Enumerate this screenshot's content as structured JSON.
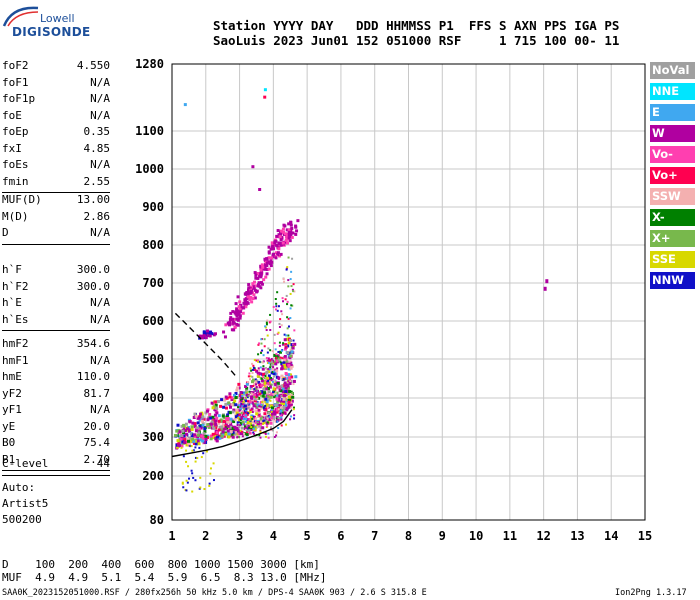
{
  "logo": {
    "line1": "Lowell",
    "line2": "DIGISONDE"
  },
  "header": {
    "row1": "Station YYYY DAY   DDD HHMMSS P1  FFS S AXN PPS IGA PS",
    "row2": "SaoLuis 2023 Jun01 152 051000 RSF     1 715 100 00- 11"
  },
  "params": [
    [
      {
        "k": "foF2",
        "v": "4.550"
      },
      {
        "k": "foF1",
        "v": "N/A"
      },
      {
        "k": "foF1p",
        "v": "N/A"
      },
      {
        "k": "foE",
        "v": "N/A"
      },
      {
        "k": "foEp",
        "v": "0.35"
      },
      {
        "k": "fxI",
        "v": "4.85"
      },
      {
        "k": "foEs",
        "v": "N/A"
      },
      {
        "k": "fmin",
        "v": "2.55"
      }
    ],
    [
      {
        "k": "MUF(D)",
        "v": "13.00"
      },
      {
        "k": "M(D)",
        "v": "2.86"
      },
      {
        "k": "D",
        "v": "N/A"
      }
    ],
    [
      {
        "k": "h`F",
        "v": "300.0"
      },
      {
        "k": "h`F2",
        "v": "300.0"
      },
      {
        "k": "h`E",
        "v": "N/A"
      },
      {
        "k": "h`Es",
        "v": "N/A"
      }
    ],
    [
      {
        "k": "hmF2",
        "v": "354.6"
      },
      {
        "k": "hmF1",
        "v": "N/A"
      },
      {
        "k": "hmE",
        "v": "110.0"
      },
      {
        "k": "yF2",
        "v": "81.7"
      },
      {
        "k": "yF1",
        "v": "N/A"
      },
      {
        "k": "yE",
        "v": "20.0"
      },
      {
        "k": "B0",
        "v": "75.4"
      },
      {
        "k": "B1",
        "v": "2.70"
      }
    ],
    [
      {
        "k": "C-level",
        "v": "44"
      }
    ]
  ],
  "autoscale": [
    "Auto:",
    "Artist5",
    "500200"
  ],
  "legend": [
    {
      "label": "NoVal",
      "color": "#a0a0a0"
    },
    {
      "label": "NNE",
      "color": "#00e5ff"
    },
    {
      "label": "E",
      "color": "#40a8f0"
    },
    {
      "label": "W",
      "color": "#b000a0"
    },
    {
      "label": "Vo-",
      "color": "#ff3fb0"
    },
    {
      "label": "Vo+",
      "color": "#ff0050"
    },
    {
      "label": "SSW",
      "color": "#f4b0b0"
    },
    {
      "label": "X-",
      "color": "#008000"
    },
    {
      "label": "X+",
      "color": "#78b84c"
    },
    {
      "label": "SSE",
      "color": "#d8d800"
    },
    {
      "label": "NNW",
      "color": "#1010c8"
    }
  ],
  "footer": {
    "row1": "D    100  200  400  600  800 1000 1500 3000 [km]",
    "row2": "MUF  4.9  4.9  5.1  5.4  5.9  6.5  8.3 13.0 [MHz]",
    "source": "SAA0K_2023152051000.RSF / 280fx256h 50 kHz 5.0 km / DPS-4 SAA0K 903 / 2.6 S 315.8 E",
    "version": "Ion2Png 1.3.17"
  },
  "chart_data": {
    "type": "scatter",
    "xlim": [
      1,
      15
    ],
    "ylim": [
      80,
      1280
    ],
    "x_ticks": [
      1,
      2,
      3,
      4,
      5,
      6,
      7,
      8,
      9,
      10,
      11,
      12,
      13,
      14,
      15
    ],
    "y_ticks": [
      80,
      200,
      300,
      400,
      500,
      600,
      700,
      800,
      900,
      1000,
      1100,
      1280
    ],
    "grid": true,
    "x_unit": "MHz",
    "y_unit": "km",
    "x_scale": "linear",
    "y_scale": "custom piecewise",
    "traces": [
      {
        "name": "O-mode echo band, lower edge",
        "x": [
          1.1,
          1.6,
          2.1,
          2.6,
          3.1,
          3.6,
          4.0,
          4.3,
          4.5
        ],
        "y": [
          280,
          290,
          295,
          305,
          315,
          330,
          350,
          375,
          400
        ]
      },
      {
        "name": "O-mode echo band, upper edge",
        "x": [
          1.4,
          2.1,
          2.6,
          3.1,
          3.6,
          4.1,
          4.5
        ],
        "y": [
          330,
          370,
          400,
          440,
          480,
          520,
          560
        ]
      },
      {
        "name": "X-mode trace",
        "x": [
          2.6,
          3.0,
          3.4,
          3.8,
          4.2,
          4.6
        ],
        "y": [
          580,
          640,
          700,
          760,
          820,
          860
        ]
      },
      {
        "name": "Es-like blob",
        "x": [
          1.8,
          2.0,
          2.2
        ],
        "y": [
          560,
          570,
          575
        ]
      },
      {
        "name": "isolated echo near 12 MHz",
        "x": [
          12.0,
          12.05
        ],
        "y": [
          690,
          710
        ]
      }
    ],
    "model_profile_solid": {
      "x": [
        1.0,
        1.5,
        2.0,
        2.5,
        3.0,
        3.5,
        4.0,
        4.3,
        4.55
      ],
      "y": [
        250,
        258,
        266,
        276,
        290,
        305,
        322,
        340,
        370
      ]
    },
    "model_profile_dashed": {
      "x": [
        1.1,
        1.5,
        2.0,
        2.5,
        2.9
      ],
      "y": [
        620,
        585,
        540,
        495,
        455
      ]
    }
  }
}
